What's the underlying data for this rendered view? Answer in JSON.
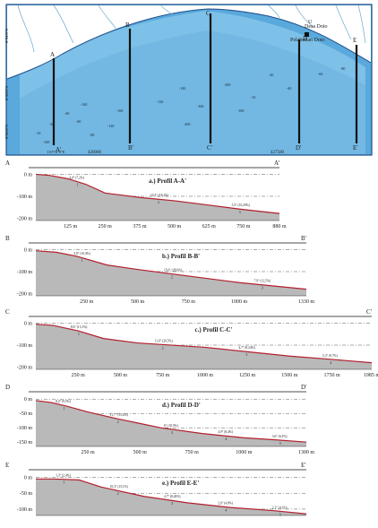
{
  "map": {
    "harbor_labels": [
      "Desa Doto",
      "Pelabuhan Doto"
    ],
    "north_symbol": "U",
    "lines": [
      {
        "start": "A",
        "end": "A'"
      },
      {
        "start": "B",
        "end": "B'"
      },
      {
        "start": "C",
        "end": "C'"
      },
      {
        "start": "D",
        "end": "D'"
      },
      {
        "start": "E",
        "end": "E'"
      }
    ],
    "coords_left": [
      "0°54'0\"S",
      "0°55'0\"S",
      "0°56'0\"S"
    ],
    "coords_bottom": [
      "119°51'0\"E",
      "426000",
      "427500"
    ],
    "depth_values": [
      "-10",
      "-20",
      "-40",
      "-60",
      "-80",
      "-100",
      "-120",
      "-140",
      "-160",
      "-200"
    ],
    "colors": {
      "water_deep": "#5aa9dc",
      "water_light": "#a9d6f0",
      "land": "#ffffff",
      "frame": "#1d4f8a"
    }
  },
  "chart_data": [
    {
      "type": "area",
      "title": "a.) Profil A-A'",
      "start": "A",
      "end": "A'",
      "y_ticks": [
        "0 m",
        "-100 m",
        "-200 m"
      ],
      "x_ticks": [
        "125 m",
        "250 m",
        "375 m",
        "500 m",
        "625 m",
        "750 m",
        "880 m"
      ],
      "ylim": [
        -210,
        10
      ],
      "x": [
        0,
        50,
        115,
        180,
        250,
        375,
        500,
        625,
        750,
        880
      ],
      "y": [
        0,
        -5,
        -20,
        -45,
        -85,
        -105,
        -120,
        -140,
        -160,
        -178
      ],
      "slope_labels": [
        "4,0° (7,2%)",
        "10,3° (18,2%)",
        "5,5° (10,29%)"
      ]
    },
    {
      "type": "area",
      "title": "b.) Profil B-B'",
      "start": "B",
      "end": "B'",
      "y_ticks": [
        "0 m",
        "-100 m",
        "-200 m"
      ],
      "x_ticks": [
        "250 m",
        "500 m",
        "750 m",
        "1000 m",
        "1330 m"
      ],
      "ylim": [
        -210,
        10
      ],
      "x": [
        0,
        100,
        200,
        350,
        500,
        750,
        1000,
        1330
      ],
      "y": [
        -5,
        -12,
        -30,
        -70,
        -90,
        -120,
        -150,
        -180
      ],
      "slope_labels": [
        "5,8° (10,4%)",
        "15,6° (28,6%)",
        "7,9° (12,5%)"
      ]
    },
    {
      "type": "area",
      "title": "c.) Profil C-C'",
      "start": "C",
      "end": "C'",
      "y_ticks": [
        "0 m",
        "-100 m",
        "-200 m"
      ],
      "x_ticks": [
        "250 m",
        "500 m",
        "750 m",
        "1000 m",
        "1250 m",
        "1500 m",
        "1750 m",
        "1985 m"
      ],
      "ylim": [
        -210,
        10
      ],
      "x": [
        0,
        100,
        250,
        400,
        600,
        1000,
        1250,
        1500,
        1750,
        1985
      ],
      "y": [
        -5,
        -10,
        -35,
        -70,
        -90,
        -110,
        -130,
        -150,
        -165,
        -180
      ],
      "slope_labels": [
        "8,6° (15,1%)",
        "11,6° (20,5%)",
        "4,7° (8,24%)",
        "5,3° (9,7%)"
      ]
    },
    {
      "type": "area",
      "title": "d.) Profil D-D'",
      "start": "D",
      "end": "D'",
      "y_ticks": [
        "0 m",
        "-50 m",
        "-100 m",
        "-150 m"
      ],
      "x_ticks": [
        "250 m",
        "500 m",
        "750 m",
        "1000 m",
        "1300 m"
      ],
      "ylim": [
        -165,
        10
      ],
      "x": [
        0,
        75,
        150,
        250,
        400,
        500,
        600,
        800,
        1000,
        1150,
        1300
      ],
      "y": [
        -5,
        -12,
        -25,
        -45,
        -70,
        -85,
        -100,
        -120,
        -135,
        -142,
        -150
      ],
      "slope_labels": [
        "8,2° (9,5%)",
        "11,7° (15,4%)",
        "6° (10,5%)",
        "4,9° (8,4%)",
        "3,6° (6,3%)"
      ]
    },
    {
      "type": "area",
      "title": "e.) Profil E-E'",
      "start": "E",
      "end": "E'",
      "y_ticks": [
        "0 m",
        "-50 m",
        "-100 m"
      ],
      "x_ticks": [],
      "ylim": [
        -120,
        10
      ],
      "x": [
        0,
        80,
        200,
        300,
        500,
        700,
        900,
        1100,
        1250
      ],
      "y": [
        -5,
        -5,
        -8,
        -30,
        -60,
        -80,
        -95,
        -105,
        -115
      ],
      "slope_labels": [
        "1,3° (2,4%)",
        "10,3° (15,1%)",
        "4,7° (8,26%)",
        "2,6° (4,8%)",
        "2,3° (4,1%)"
      ]
    }
  ]
}
